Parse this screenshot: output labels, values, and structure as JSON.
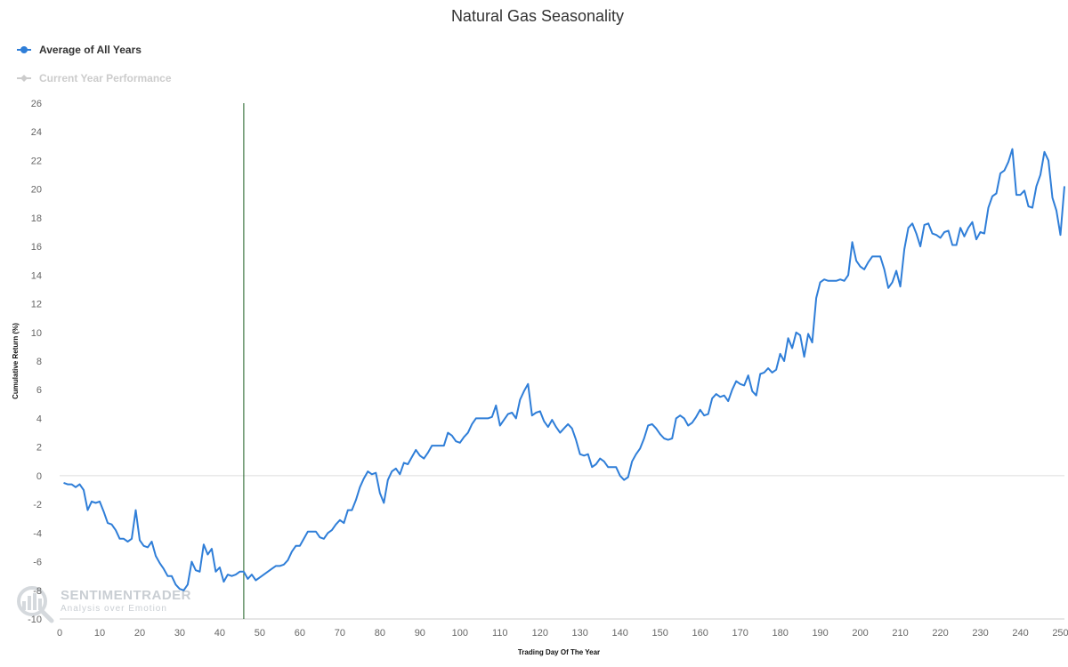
{
  "chart_data": {
    "type": "line",
    "title": "Natural Gas Seasonality",
    "xlabel": "Trading Day Of The Year",
    "ylabel": "Cumulative Return (%)",
    "xlim": [
      0,
      251
    ],
    "ylim": [
      -10,
      26
    ],
    "x_ticks": [
      0,
      10,
      20,
      30,
      40,
      50,
      60,
      70,
      80,
      90,
      100,
      110,
      120,
      130,
      140,
      150,
      160,
      170,
      180,
      190,
      200,
      210,
      220,
      230,
      240,
      250
    ],
    "y_ticks": [
      -10,
      -8,
      -6,
      -4,
      -2,
      0,
      2,
      4,
      6,
      8,
      10,
      12,
      14,
      16,
      18,
      20,
      22,
      24,
      26
    ],
    "grid": false,
    "legend_position": "top-left",
    "marker_line_x": 46,
    "marker_line_color": "#1b5e20",
    "series": [
      {
        "name": "Average of All Years",
        "color": "#2f7ed8",
        "visible": true,
        "x_start": 1,
        "values": [
          -0.5,
          -0.6,
          -0.6,
          -0.8,
          -0.6,
          -1.0,
          -2.4,
          -1.8,
          -1.9,
          -1.8,
          -2.5,
          -3.3,
          -3.4,
          -3.8,
          -4.4,
          -4.4,
          -4.6,
          -4.4,
          -2.4,
          -4.5,
          -4.9,
          -5.0,
          -4.6,
          -5.6,
          -6.1,
          -6.5,
          -7.0,
          -7.0,
          -7.6,
          -7.9,
          -8.0,
          -7.6,
          -6.0,
          -6.6,
          -6.7,
          -4.8,
          -5.5,
          -5.1,
          -6.7,
          -6.4,
          -7.4,
          -6.9,
          -7.0,
          -6.9,
          -6.7,
          -6.7,
          -7.2,
          -6.9,
          -7.3,
          -7.1,
          -6.9,
          -6.7,
          -6.5,
          -6.3,
          -6.3,
          -6.2,
          -5.9,
          -5.3,
          -4.9,
          -4.9,
          -4.4,
          -3.9,
          -3.9,
          -3.9,
          -4.3,
          -4.4,
          -4.0,
          -3.8,
          -3.4,
          -3.1,
          -3.3,
          -2.4,
          -2.4,
          -1.7,
          -0.8,
          -0.2,
          0.3,
          0.1,
          0.2,
          -1.2,
          -1.9,
          -0.3,
          0.3,
          0.5,
          0.1,
          0.9,
          0.8,
          1.3,
          1.8,
          1.4,
          1.2,
          1.6,
          2.1,
          2.1,
          2.1,
          2.1,
          3.0,
          2.8,
          2.4,
          2.3,
          2.7,
          3.0,
          3.6,
          4.0,
          4.0,
          4.0,
          4.0,
          4.1,
          4.9,
          3.5,
          3.9,
          4.3,
          4.4,
          4.0,
          5.3,
          5.9,
          6.4,
          4.2,
          4.4,
          4.5,
          3.8,
          3.4,
          3.9,
          3.4,
          3.0,
          3.3,
          3.6,
          3.3,
          2.5,
          1.5,
          1.4,
          1.5,
          0.6,
          0.8,
          1.2,
          1.0,
          0.6,
          0.6,
          0.6,
          0.0,
          -0.3,
          -0.1,
          1.0,
          1.5,
          1.9,
          2.6,
          3.5,
          3.6,
          3.3,
          2.9,
          2.6,
          2.5,
          2.6,
          4.0,
          4.2,
          4.0,
          3.5,
          3.7,
          4.1,
          4.6,
          4.2,
          4.3,
          5.4,
          5.7,
          5.5,
          5.6,
          5.2,
          6.0,
          6.6,
          6.4,
          6.3,
          7.0,
          5.9,
          5.6,
          7.1,
          7.2,
          7.5,
          7.2,
          7.4,
          8.5,
          8.0,
          9.6,
          8.9,
          10.0,
          9.8,
          8.3,
          9.9,
          9.3,
          12.4,
          13.5,
          13.7,
          13.6,
          13.6,
          13.6,
          13.7,
          13.6,
          14.0,
          16.3,
          15.0,
          14.6,
          14.4,
          14.9,
          15.3,
          15.3,
          15.3,
          14.4,
          13.1,
          13.5,
          14.3,
          13.2,
          15.8,
          17.3,
          17.6,
          16.9,
          16.0,
          17.5,
          17.6,
          16.9,
          16.8,
          16.6,
          17.0,
          17.1,
          16.1,
          16.1,
          17.3,
          16.7,
          17.3,
          17.7,
          16.5,
          17.0,
          16.9,
          18.7,
          19.5,
          19.7,
          21.1,
          21.3,
          21.9,
          22.8,
          19.6,
          19.6,
          19.9,
          18.8,
          18.7,
          20.2,
          21.0,
          22.6,
          22.0,
          19.4,
          18.5,
          16.8,
          20.2
        ]
      },
      {
        "name": "Current Year Performance",
        "color": "#cccccc",
        "visible": false,
        "values": []
      }
    ]
  },
  "watermark": {
    "brand": "SENTIMENTRADER",
    "tagline": "Analysis over Emotion"
  }
}
